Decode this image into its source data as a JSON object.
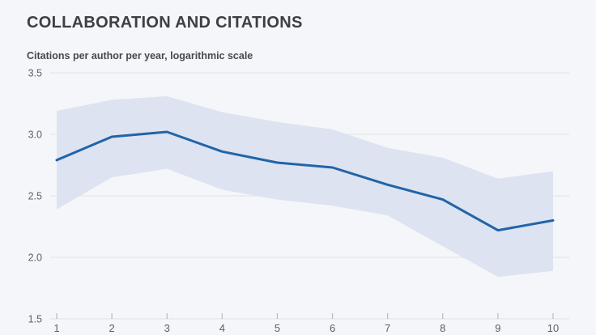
{
  "page": {
    "background": "#f5f6f9"
  },
  "header": {
    "title": "COLLABORATION AND CITATIONS",
    "subtitle": "Citations per author per year, logarithmic scale"
  },
  "chart_data": {
    "type": "line",
    "title": "COLLABORATION AND CITATIONS",
    "subtitle": "Citations per author per year, logarithmic scale",
    "x": [
      1,
      2,
      3,
      4,
      5,
      6,
      7,
      8,
      9,
      10
    ],
    "series": [
      {
        "name": "citations_per_author",
        "role": "line",
        "values": [
          2.79,
          2.98,
          3.02,
          2.86,
          2.77,
          2.73,
          2.59,
          2.47,
          2.22,
          2.3
        ]
      },
      {
        "name": "confidence_band_upper",
        "role": "band-upper",
        "values": [
          3.19,
          3.28,
          3.31,
          3.18,
          3.1,
          3.04,
          2.89,
          2.81,
          2.64,
          2.7
        ]
      },
      {
        "name": "confidence_band_lower",
        "role": "band-lower",
        "values": [
          2.39,
          2.65,
          2.72,
          2.55,
          2.47,
          2.42,
          2.34,
          2.09,
          1.84,
          1.89
        ]
      }
    ],
    "x_ticks": [
      "1",
      "2",
      "3",
      "4",
      "5",
      "6",
      "7",
      "8",
      "9",
      "10"
    ],
    "y_ticks": [
      {
        "label": "3.5",
        "value": 3.5
      },
      {
        "label": "3.0",
        "value": 3.0
      },
      {
        "label": "2.5",
        "value": 2.5
      },
      {
        "label": "2.0",
        "value": 2.0
      },
      {
        "label": "1.5",
        "value": 1.5
      }
    ],
    "ylim": [
      1.5,
      3.5
    ],
    "xlim": [
      1,
      10
    ],
    "grid": "horizontal",
    "legend": "none",
    "colors": {
      "background": "#f5f6f9",
      "grid": "#e3e5e9",
      "tick": "#b6bac0",
      "axis_text": "#5b6066",
      "band": "#dde3f1",
      "line": "#2164a9",
      "title": "#3b4046",
      "subtitle": "#45494e"
    }
  }
}
